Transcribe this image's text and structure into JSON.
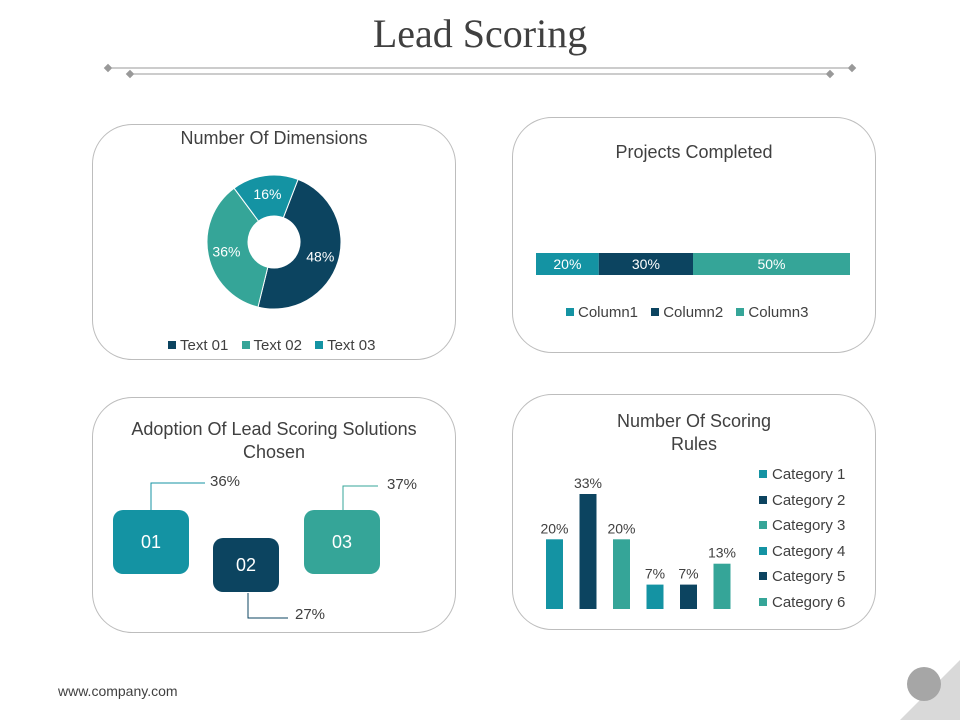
{
  "page": {
    "title": "Lead Scoring",
    "footer": "www.company.com"
  },
  "colors": {
    "teal": "#1493A3",
    "navy": "#0C4460",
    "seafoam": "#35A598",
    "text": "#404040",
    "border": "#bdbdbd"
  },
  "chart_data": [
    {
      "type": "pie",
      "title": "Number Of Dimensions",
      "categories": [
        "Text 01",
        "Text 02",
        "Text 03"
      ],
      "values": [
        48,
        36,
        16
      ],
      "labels": [
        "48%",
        "36%",
        "16%"
      ],
      "colors": [
        "#0C4460",
        "#35A598",
        "#1493A3"
      ],
      "legend": "bottom"
    },
    {
      "type": "bar",
      "orientation": "horizontal-stacked",
      "title": "Projects Completed",
      "series": [
        {
          "name": "Column1",
          "values": [
            20
          ],
          "label": "20%",
          "color": "#1493A3"
        },
        {
          "name": "Column2",
          "values": [
            30
          ],
          "label": "30%",
          "color": "#0C4460"
        },
        {
          "name": "Column3",
          "values": [
            50
          ],
          "label": "50%",
          "color": "#35A598"
        }
      ],
      "legend": "bottom"
    },
    {
      "type": "other",
      "title": "Adoption Of Lead Scoring Solutions Chosen",
      "items": [
        {
          "label": "01",
          "value": "36%",
          "color": "#1493A3"
        },
        {
          "label": "02",
          "value": "27%",
          "color": "#0C4460"
        },
        {
          "label": "03",
          "value": "37%",
          "color": "#35A598"
        }
      ]
    },
    {
      "type": "bar",
      "title": "Number Of Scoring Rules",
      "categories": [
        "Category 1",
        "Category 2",
        "Category 3",
        "Category 4",
        "Category 5",
        "Category 6"
      ],
      "values": [
        20,
        33,
        20,
        7,
        7,
        13
      ],
      "labels": [
        "20%",
        "33%",
        "20%",
        "7%",
        "7%",
        "13%"
      ],
      "colors": [
        "#1493A3",
        "#0C4460",
        "#35A598",
        "#1493A3",
        "#0C4460",
        "#35A598"
      ],
      "ylim": [
        0,
        33
      ],
      "grid": false,
      "legend": "right"
    }
  ]
}
